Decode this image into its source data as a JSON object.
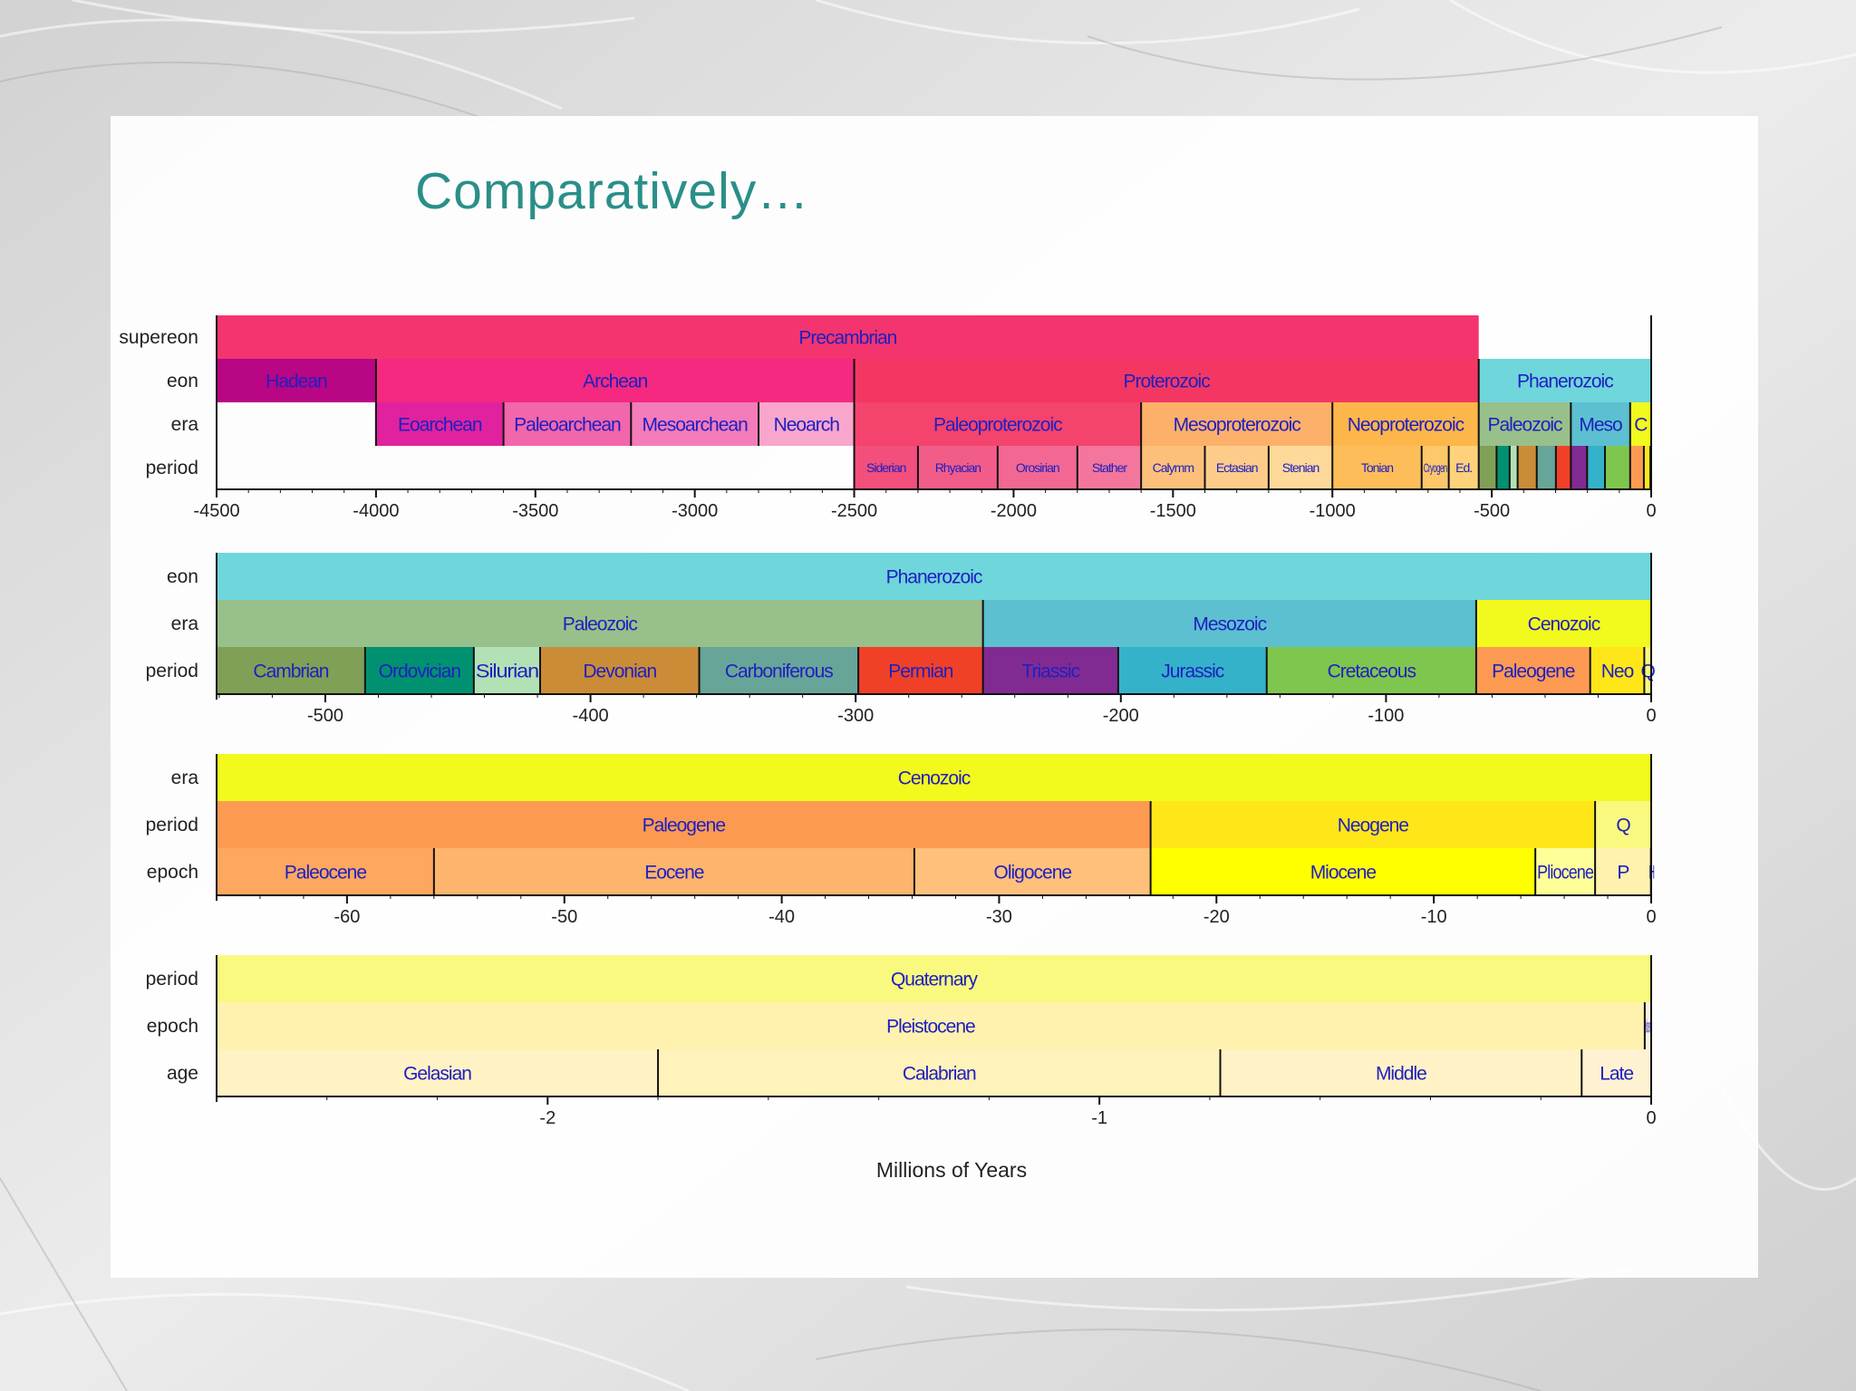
{
  "slide": {
    "title": "Comparatively…"
  },
  "colors": {
    "title": "#2a8f88",
    "label_text": "#2020c0",
    "background": "#e4e4e4",
    "panel": "#ffffff"
  },
  "chart_data": {
    "type": "timeline",
    "xlabel": "Millions of Years",
    "panels": [
      {
        "id": "all-time",
        "range": [
          -4500,
          0
        ],
        "ticks": [
          -4500,
          -4000,
          -3500,
          -3000,
          -2500,
          -2000,
          -1500,
          -1000,
          -500,
          0
        ],
        "rows": [
          {
            "label": "supereon",
            "bands": [
              {
                "name": "Precambrian",
                "start": -4500,
                "end": -541,
                "color": "#f4346e"
              }
            ]
          },
          {
            "label": "eon",
            "bands": [
              {
                "name": "Hadean",
                "start": -4500,
                "end": -4000,
                "color": "#b80684"
              },
              {
                "name": "Archean",
                "start": -4000,
                "end": -2500,
                "color": "#f4297f"
              },
              {
                "name": "Proterozoic",
                "start": -2500,
                "end": -541,
                "color": "#f43762"
              },
              {
                "name": "Phanerozoic",
                "start": -541,
                "end": 0,
                "color": "#6fd6dc"
              }
            ]
          },
          {
            "label": "era",
            "bands": [
              {
                "name": "Eoarchean",
                "start": -4000,
                "end": -3600,
                "color": "#e0229e"
              },
              {
                "name": "Paleoarchean",
                "start": -3600,
                "end": -3200,
                "color": "#f266ac"
              },
              {
                "name": "Mesoarchean",
                "start": -3200,
                "end": -2800,
                "color": "#f47cbb"
              },
              {
                "name": "Neoarch",
                "start": -2800,
                "end": -2500,
                "color": "#f8a6cc"
              },
              {
                "name": "Paleoproterozoic",
                "start": -2500,
                "end": -1600,
                "color": "#f4436c"
              },
              {
                "name": "Mesoproterozoic",
                "start": -1600,
                "end": -1000,
                "color": "#fdb06a"
              },
              {
                "name": "Neoproterozoic",
                "start": -1000,
                "end": -541,
                "color": "#fdb64a"
              },
              {
                "name": "Paleozoic",
                "start": -541,
                "end": -252,
                "color": "#98c08a"
              },
              {
                "name": "Meso",
                "start": -252,
                "end": -66,
                "color": "#5cc0d0"
              },
              {
                "name": "C",
                "start": -66,
                "end": 0,
                "color": "#f2f91d"
              }
            ]
          },
          {
            "label": "period",
            "bands": [
              {
                "name": "Siderian",
                "start": -2500,
                "end": -2300,
                "color": "#f24f7c"
              },
              {
                "name": "Rhyacian",
                "start": -2300,
                "end": -2050,
                "color": "#f25c88"
              },
              {
                "name": "Orosirian",
                "start": -2050,
                "end": -1800,
                "color": "#f36893"
              },
              {
                "name": "Statherian",
                "start": -1800,
                "end": -1600,
                "color": "#f4769d"
              },
              {
                "name": "Calymmian",
                "start": -1600,
                "end": -1400,
                "color": "#fdc07a"
              },
              {
                "name": "Ectasian",
                "start": -1400,
                "end": -1200,
                "color": "#fdcc8a"
              },
              {
                "name": "Stenian",
                "start": -1200,
                "end": -1000,
                "color": "#fed99a"
              },
              {
                "name": "Tonian",
                "start": -1000,
                "end": -720,
                "color": "#fdbe5a"
              },
              {
                "name": "Cryogenian",
                "start": -720,
                "end": -635,
                "color": "#fdc86a"
              },
              {
                "name": "Ediacaran",
                "start": -635,
                "end": -541,
                "color": "#fdd27a"
              },
              {
                "name": "Cambrian",
                "start": -541,
                "end": -485,
                "color": "#7fa056"
              },
              {
                "name": "Ordovician",
                "start": -485,
                "end": -444,
                "color": "#009270"
              },
              {
                "name": "Silurian",
                "start": -444,
                "end": -419,
                "color": "#b3e1b6"
              },
              {
                "name": "Devonian",
                "start": -419,
                "end": -359,
                "color": "#cb8c37"
              },
              {
                "name": "Carboniferous",
                "start": -359,
                "end": -299,
                "color": "#67a599"
              },
              {
                "name": "Permian",
                "start": -299,
                "end": -252,
                "color": "#f04028"
              },
              {
                "name": "Triassic",
                "start": -252,
                "end": -201,
                "color": "#812b92"
              },
              {
                "name": "Jurassic",
                "start": -201,
                "end": -145,
                "color": "#34b2c9"
              },
              {
                "name": "Cretaceous",
                "start": -145,
                "end": -66,
                "color": "#7fc64e"
              },
              {
                "name": "Paleogene",
                "start": -66,
                "end": -23,
                "color": "#fd9a52"
              },
              {
                "name": "Neogene",
                "start": -23,
                "end": -2.6,
                "color": "#ffe619"
              },
              {
                "name": "Quaternary",
                "start": -2.6,
                "end": 0,
                "color": "#f9f97f"
              }
            ]
          }
        ],
        "shown_labels": {
          "Siderian": "Siderian",
          "Rhyacian": "Rhyacian",
          "Orosirian": "Orosirian",
          "Statherian": "Stather",
          "Calymmian": "Calymm",
          "Ectasian": "Ectasian",
          "Stenian": "Stenian",
          "Tonian": "Tonian",
          "Cryogenian": "Cryogen",
          "Ediacaran": "Ed."
        },
        "hidden_labels": [
          "Cambrian",
          "Ordovician",
          "Silurian",
          "Devonian",
          "Carboniferous",
          "Permian",
          "Triassic",
          "Jurassic",
          "Cretaceous",
          "Paleogene",
          "Neogene",
          "Quaternary"
        ]
      },
      {
        "id": "phanerozoic",
        "range": [
          -541,
          0
        ],
        "ticks": [
          -500,
          -400,
          -300,
          -200,
          -100,
          0
        ],
        "rows": [
          {
            "label": "eon",
            "bands": [
              {
                "name": "Phanerozoic",
                "start": -541,
                "end": 0,
                "color": "#6fd6dc"
              }
            ]
          },
          {
            "label": "era",
            "bands": [
              {
                "name": "Paleozoic",
                "start": -541,
                "end": -252,
                "color": "#98c08a"
              },
              {
                "name": "Mesozoic",
                "start": -252,
                "end": -66,
                "color": "#5cc0d0"
              },
              {
                "name": "Cenozoic",
                "start": -66,
                "end": 0,
                "color": "#f2f91d"
              }
            ]
          },
          {
            "label": "period",
            "bands": [
              {
                "name": "Cambrian",
                "start": -541,
                "end": -485,
                "color": "#7fa056"
              },
              {
                "name": "Ordovician",
                "start": -485,
                "end": -444,
                "color": "#009270"
              },
              {
                "name": "Silurian",
                "start": -444,
                "end": -419,
                "color": "#b3e1b6"
              },
              {
                "name": "Devonian",
                "start": -419,
                "end": -359,
                "color": "#cb8c37"
              },
              {
                "name": "Carboniferous",
                "start": -359,
                "end": -299,
                "color": "#67a599"
              },
              {
                "name": "Permian",
                "start": -299,
                "end": -252,
                "color": "#f04028"
              },
              {
                "name": "Triassic",
                "start": -252,
                "end": -201,
                "color": "#812b92"
              },
              {
                "name": "Jurassic",
                "start": -201,
                "end": -145,
                "color": "#34b2c9"
              },
              {
                "name": "Cretaceous",
                "start": -145,
                "end": -66,
                "color": "#7fc64e"
              },
              {
                "name": "Paleogene",
                "start": -66,
                "end": -23,
                "color": "#fd9a52"
              },
              {
                "name": "Neogene",
                "start": -23,
                "end": -2.6,
                "color": "#ffe619"
              },
              {
                "name": "Quaternary",
                "start": -2.6,
                "end": 0,
                "color": "#f9f97f"
              }
            ]
          }
        ],
        "shown_labels": {
          "Neogene": "Neo",
          "Quaternary": "Q"
        }
      },
      {
        "id": "cenozoic",
        "range": [
          -66,
          0
        ],
        "ticks": [
          -60,
          -50,
          -40,
          -30,
          -20,
          -10,
          0
        ],
        "rows": [
          {
            "label": "era",
            "bands": [
              {
                "name": "Cenozoic",
                "start": -66,
                "end": 0,
                "color": "#f2f91d"
              }
            ]
          },
          {
            "label": "period",
            "bands": [
              {
                "name": "Paleogene",
                "start": -66,
                "end": -23.03,
                "color": "#fd9a52"
              },
              {
                "name": "Neogene",
                "start": -23.03,
                "end": -2.58,
                "color": "#ffe619"
              },
              {
                "name": "Quaternary",
                "start": -2.58,
                "end": 0,
                "color": "#f9f97f"
              }
            ]
          },
          {
            "label": "epoch",
            "bands": [
              {
                "name": "Paleocene",
                "start": -66,
                "end": -56,
                "color": "#fda75f"
              },
              {
                "name": "Eocene",
                "start": -56,
                "end": -33.9,
                "color": "#fdb46c"
              },
              {
                "name": "Oligocene",
                "start": -33.9,
                "end": -23.03,
                "color": "#fec07a"
              },
              {
                "name": "Miocene",
                "start": -23.03,
                "end": -5.33,
                "color": "#ffff00"
              },
              {
                "name": "Pliocene",
                "start": -5.33,
                "end": -2.58,
                "color": "#ffff99"
              },
              {
                "name": "Pleistocene",
                "start": -2.58,
                "end": -0.0117,
                "color": "#fff2ae"
              },
              {
                "name": "Holocene",
                "start": -0.0117,
                "end": 0,
                "color": "#fef2e0"
              }
            ]
          }
        ],
        "shown_labels": {
          "Quaternary": "Q",
          "Pleistocene": "P",
          "Holocene": "H"
        }
      },
      {
        "id": "quaternary",
        "range": [
          -2.6,
          0
        ],
        "ticks": [
          -2,
          -1,
          0
        ],
        "rows": [
          {
            "label": "period",
            "bands": [
              {
                "name": "Quaternary",
                "start": -2.6,
                "end": 0,
                "color": "#f9f97f"
              }
            ]
          },
          {
            "label": "epoch",
            "bands": [
              {
                "name": "Pleistocene",
                "start": -2.6,
                "end": -0.0117,
                "color": "#fff2ae"
              },
              {
                "name": "Holocene",
                "start": -0.0117,
                "end": 0,
                "color": "#fef2e0"
              }
            ]
          },
          {
            "label": "age",
            "bands": [
              {
                "name": "Gelasian",
                "start": -2.6,
                "end": -1.8,
                "color": "#fff2c5"
              },
              {
                "name": "Calabrian",
                "start": -1.8,
                "end": -0.781,
                "color": "#fff2ba"
              },
              {
                "name": "Middle",
                "start": -0.781,
                "end": -0.126,
                "color": "#fff2c7"
              },
              {
                "name": "Late",
                "start": -0.126,
                "end": 0,
                "color": "#fff2d3"
              }
            ]
          }
        ],
        "shown_labels": {
          "Holocene": "Holocene"
        }
      }
    ]
  }
}
